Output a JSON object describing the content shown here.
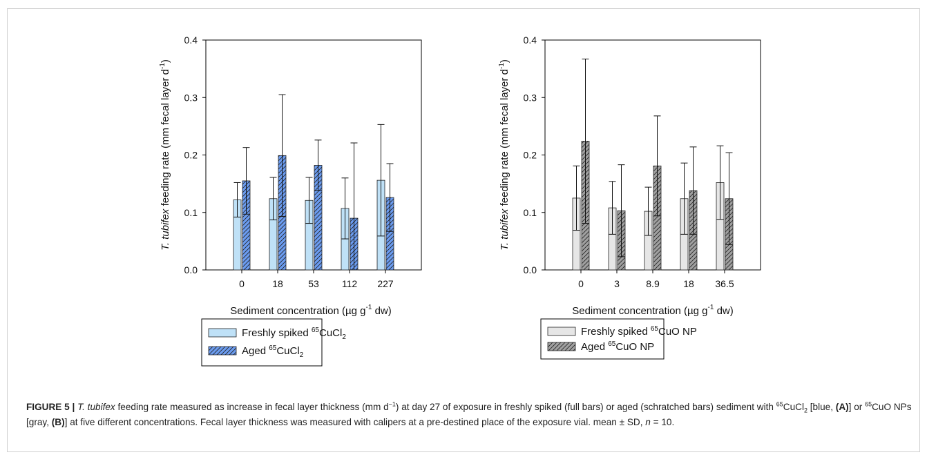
{
  "colors": {
    "fresh_a": "#bfe1f7",
    "aged_a": "#6b9cf0",
    "fresh_b": "#e6e6e6",
    "aged_b": "#a0a0a0",
    "frame": "#cfcfcf"
  },
  "chart_data": [
    {
      "type": "bar",
      "panel": "A",
      "ylabel": {
        "species": "T. tubifex",
        "rest": " feeding rate (mm fecal layer d",
        "sup": "-1",
        "end": ")"
      },
      "xlabel": {
        "pre": "Sediment concentration (µg g",
        "sup": "-1",
        "post": " dw)"
      },
      "ylim": [
        0,
        0.4
      ],
      "yticks": [
        "0.0",
        "0.1",
        "0.2",
        "0.3",
        "0.4"
      ],
      "categories": [
        "0",
        "18",
        "53",
        "112",
        "227"
      ],
      "grid": false,
      "legend_position": "bottom",
      "series": [
        {
          "name": "Freshly spiked",
          "sup": "65",
          "compound": "CuCl",
          "sub": "2",
          "pattern": "solid",
          "values": [
            0.122,
            0.124,
            0.121,
            0.107,
            0.156
          ],
          "sd": [
            0.03,
            0.037,
            0.04,
            0.053,
            0.097
          ]
        },
        {
          "name": "Aged",
          "sup": "65",
          "compound": "CuCl",
          "sub": "2",
          "pattern": "hatched",
          "values": [
            0.155,
            0.199,
            0.182,
            0.09,
            0.126
          ],
          "sd": [
            0.058,
            0.106,
            0.044,
            0.131,
            0.059
          ]
        }
      ]
    },
    {
      "type": "bar",
      "panel": "B",
      "ylabel": {
        "species": "T. tubifex",
        "rest": " feeding rate (mm fecal layer d",
        "sup": "-1",
        "end": ")"
      },
      "xlabel": {
        "pre": "Sediment concentration (µg g",
        "sup": "-1",
        "post": " dw)"
      },
      "ylim": [
        0,
        0.4
      ],
      "yticks": [
        "0.0",
        "0.1",
        "0.2",
        "0.3",
        "0.4"
      ],
      "categories": [
        "0",
        "3",
        "8.9",
        "18",
        "36.5"
      ],
      "grid": false,
      "legend_position": "bottom",
      "series": [
        {
          "name": "Freshly spiked",
          "sup": "65",
          "compound": "CuO NP",
          "sub": "",
          "pattern": "solid",
          "values": [
            0.125,
            0.108,
            0.102,
            0.124,
            0.152
          ],
          "sd": [
            0.056,
            0.046,
            0.042,
            0.062,
            0.064
          ]
        },
        {
          "name": "Aged",
          "sup": "65",
          "compound": "CuO NP",
          "sub": "",
          "pattern": "hatched",
          "values": [
            0.224,
            0.103,
            0.181,
            0.138,
            0.124
          ],
          "sd": [
            0.143,
            0.08,
            0.087,
            0.076,
            0.08
          ]
        }
      ]
    }
  ],
  "caption": {
    "label": "FIGURE 5 |",
    "species": "T. tubifex",
    "t1": " feeding rate measured as increase in fecal layer thickness (mm d",
    "sup1": "−1",
    "t2": ") at day 27 of exposure in freshly spiked (full bars) or aged (schratched bars) sediment with ",
    "sup2": "65",
    "cucl": "CuCl",
    "sub2": "2",
    "t3": " [blue, ",
    "a": "(A)",
    "t4": "] or ",
    "sup3": "65",
    "t5": "CuO NPs [gray, ",
    "b": "(B)",
    "t6": "] at five different concentrations. Fecal layer thickness was measured with calipers at a pre-destined place of the exposure vial. mean ± SD, ",
    "n": "n",
    "t7": " = 10."
  }
}
